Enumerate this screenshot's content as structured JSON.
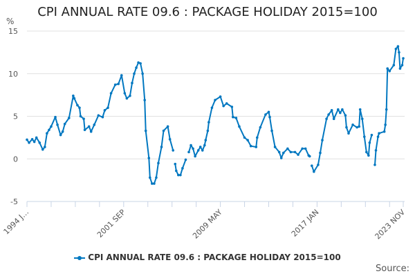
{
  "chart_data": {
    "type": "line",
    "title": "CPI ANNUAL RATE 09.6 : PACKAGE HOLIDAY 2015=100",
    "ylabel": "%",
    "xlabel": "",
    "ylim": [
      -5,
      15
    ],
    "yticks": [
      15,
      10,
      5,
      0,
      -5
    ],
    "xlim": [
      "1994-01",
      "2023-11"
    ],
    "xtick_labels": [
      {
        "date": "1994-01",
        "label": "1994 J…"
      },
      {
        "date": "2001-09",
        "label": "2001 SEP"
      },
      {
        "date": "2009-05",
        "label": "2009 MAY"
      },
      {
        "date": "2017-01",
        "label": "2017 JAN"
      },
      {
        "date": "2023-11",
        "label": "2023 NOV"
      }
    ],
    "grid": true,
    "legend": "bottom",
    "color": "#0077c0",
    "series": [
      {
        "name": "CPI ANNUAL RATE 09.6 : PACKAGE HOLIDAY 2015=100",
        "points": [
          [
            "1994-01",
            2.25
          ],
          [
            "1994-03",
            1.9
          ],
          [
            "1994-06",
            2.3
          ],
          [
            "1994-08",
            2.0
          ],
          [
            "1994-10",
            2.5
          ],
          [
            "1995-01",
            1.9
          ],
          [
            "1995-04",
            1.1
          ],
          [
            "1995-06",
            1.4
          ],
          [
            "1995-08",
            3.0
          ],
          [
            "1995-10",
            3.4
          ],
          [
            "1995-12",
            3.8
          ],
          [
            "1996-04",
            4.9
          ],
          [
            "1996-06",
            4.0
          ],
          [
            "1996-09",
            2.8
          ],
          [
            "1996-11",
            3.2
          ],
          [
            "1997-01",
            4.1
          ],
          [
            "1997-05",
            4.8
          ],
          [
            "1997-09",
            7.4
          ],
          [
            "1997-10",
            7.1
          ],
          [
            "1998-01",
            6.3
          ],
          [
            "1998-03",
            6.0
          ],
          [
            "1998-04",
            5.0
          ],
          [
            "1998-07",
            4.7
          ],
          [
            "1998-08",
            3.4
          ],
          [
            "1998-12",
            3.8
          ],
          [
            "1999-02",
            3.2
          ],
          [
            "1999-05",
            4.0
          ],
          [
            "1999-09",
            5.1
          ],
          [
            "2000-01",
            4.9
          ],
          [
            "2000-03",
            5.7
          ],
          [
            "2000-06",
            6.0
          ],
          [
            "2000-09",
            7.7
          ],
          [
            "2001-01",
            8.7
          ],
          [
            "2001-04",
            8.8
          ],
          [
            "2001-07",
            9.8
          ],
          [
            "2001-10",
            7.7
          ],
          [
            "2001-12",
            7.1
          ],
          [
            "2002-03",
            7.4
          ],
          [
            "2002-05",
            8.9
          ],
          [
            "2002-07",
            10.0
          ],
          [
            "2002-09",
            10.7
          ],
          [
            "2002-11",
            11.3
          ],
          [
            "2003-01",
            11.2
          ],
          [
            "2003-03",
            10.0
          ],
          [
            "2003-05",
            6.9
          ],
          [
            "2003-06",
            3.3
          ],
          [
            "2003-09",
            0.1
          ],
          [
            "2003-10",
            -2.2
          ],
          [
            "2003-12",
            -2.9
          ],
          [
            "2004-02",
            -2.9
          ],
          [
            "2004-04",
            -2.2
          ],
          [
            "2004-06",
            -0.5
          ],
          [
            "2004-09",
            1.4
          ],
          [
            "2004-11",
            3.3
          ],
          [
            "2005-03",
            3.8
          ],
          [
            "2005-05",
            2.3
          ],
          [
            "2005-08",
            1.0
          ],
          [
            "2005-09",
            null
          ],
          [
            "2005-10",
            -0.6
          ],
          [
            "2005-11",
            -1.4
          ],
          [
            "2006-01",
            -1.9
          ],
          [
            "2006-03",
            -1.9
          ],
          [
            "2006-05",
            -1.1
          ],
          [
            "2006-08",
            -0.1
          ],
          [
            "2006-09",
            null
          ],
          [
            "2006-11",
            0.8
          ],
          [
            "2007-01",
            1.6
          ],
          [
            "2007-03",
            1.2
          ],
          [
            "2007-05",
            0.3
          ],
          [
            "2007-08",
            1.0
          ],
          [
            "2007-10",
            1.4
          ],
          [
            "2007-12",
            1.0
          ],
          [
            "2008-02",
            1.6
          ],
          [
            "2008-03",
            2.2
          ],
          [
            "2008-05",
            3.3
          ],
          [
            "2008-06",
            4.3
          ],
          [
            "2008-09",
            6.0
          ],
          [
            "2008-12",
            6.9
          ],
          [
            "2009-05",
            7.3
          ],
          [
            "2009-08",
            6.2
          ],
          [
            "2009-11",
            6.5
          ],
          [
            "2010-04",
            6.1
          ],
          [
            "2010-05",
            4.9
          ],
          [
            "2010-08",
            4.8
          ],
          [
            "2010-11",
            3.8
          ],
          [
            "2011-04",
            2.5
          ],
          [
            "2011-07",
            2.2
          ],
          [
            "2011-10",
            1.5
          ],
          [
            "2012-03",
            1.4
          ],
          [
            "2012-04",
            2.5
          ],
          [
            "2012-07",
            3.7
          ],
          [
            "2012-12",
            5.2
          ],
          [
            "2013-03",
            5.5
          ],
          [
            "2013-04",
            4.9
          ],
          [
            "2013-06",
            3.3
          ],
          [
            "2013-09",
            1.4
          ],
          [
            "2014-01",
            0.8
          ],
          [
            "2014-03",
            0.1
          ],
          [
            "2014-05",
            0.7
          ],
          [
            "2014-09",
            1.2
          ],
          [
            "2014-12",
            0.8
          ],
          [
            "2015-04",
            0.8
          ],
          [
            "2015-07",
            0.5
          ],
          [
            "2015-11",
            1.2
          ],
          [
            "2016-02",
            1.2
          ],
          [
            "2016-05",
            0.4
          ],
          [
            "2016-06",
            0.3
          ],
          [
            "2016-07",
            null
          ],
          [
            "2016-08",
            -0.8
          ],
          [
            "2016-10",
            -1.5
          ],
          [
            "2017-02",
            -0.7
          ],
          [
            "2017-04",
            0.7
          ],
          [
            "2017-06",
            2.2
          ],
          [
            "2017-10",
            4.7
          ],
          [
            "2017-12",
            5.2
          ],
          [
            "2018-03",
            5.7
          ],
          [
            "2018-05",
            4.7
          ],
          [
            "2018-09",
            5.8
          ],
          [
            "2018-11",
            5.4
          ],
          [
            "2019-01",
            5.8
          ],
          [
            "2019-04",
            5.1
          ],
          [
            "2019-05",
            3.7
          ],
          [
            "2019-07",
            3.0
          ],
          [
            "2019-11",
            4.0
          ],
          [
            "2020-03",
            3.7
          ],
          [
            "2020-05",
            3.8
          ],
          [
            "2020-06",
            5.8
          ],
          [
            "2020-08",
            4.7
          ],
          [
            "2020-10",
            2.6
          ],
          [
            "2020-12",
            0.8
          ],
          [
            "2021-02",
            0.4
          ],
          [
            "2021-03",
            1.9
          ],
          [
            "2021-05",
            2.8
          ],
          [
            "2021-06",
            null
          ],
          [
            "2021-08",
            -0.7
          ],
          [
            "2021-09",
            1.0
          ],
          [
            "2021-11",
            2.6
          ],
          [
            "2021-12",
            3.0
          ],
          [
            "2022-05",
            3.2
          ],
          [
            "2022-06",
            4.0
          ],
          [
            "2022-07",
            5.8
          ],
          [
            "2022-08",
            10.6
          ],
          [
            "2022-10",
            10.3
          ],
          [
            "2023-02",
            11.0
          ],
          [
            "2023-04",
            12.9
          ],
          [
            "2023-06",
            13.2
          ],
          [
            "2023-07",
            12.5
          ],
          [
            "2023-08",
            10.6
          ],
          [
            "2023-10",
            11.0
          ],
          [
            "2023-11",
            11.8
          ]
        ]
      }
    ]
  },
  "source_label": "Source:"
}
